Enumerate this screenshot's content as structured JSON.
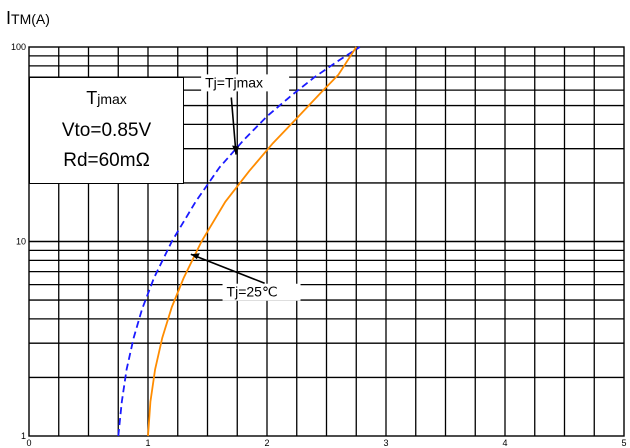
{
  "chart_data": {
    "type": "line",
    "ylabel_main": "I",
    "ylabel_sub": "TM(A)",
    "x_ticks": [
      "0",
      "1",
      "2",
      "3",
      "4",
      "5"
    ],
    "y_ticks": [
      "1",
      "10",
      "100"
    ],
    "xlim": [
      0,
      5
    ],
    "ylim": [
      1,
      100
    ],
    "y_scale": "log",
    "grid": true,
    "info": {
      "line1_main": "T",
      "line1_sub": "jmax",
      "line2": "Vto=0.85V",
      "line3": "Rd=60mΩ"
    },
    "series": [
      {
        "name": "Tj=Tjmax",
        "color": "#1a1aff",
        "dash": true,
        "points": [
          [
            0.75,
            1
          ],
          [
            0.78,
            1.5
          ],
          [
            0.82,
            2.2
          ],
          [
            0.88,
            3.2
          ],
          [
            0.95,
            4.5
          ],
          [
            1.05,
            6.5
          ],
          [
            1.2,
            10
          ],
          [
            1.4,
            16
          ],
          [
            1.6,
            24
          ],
          [
            1.8,
            33
          ],
          [
            2.0,
            44
          ],
          [
            2.2,
            56
          ],
          [
            2.4,
            70
          ],
          [
            2.6,
            85
          ],
          [
            2.78,
            100
          ]
        ]
      },
      {
        "name": "Tj=25℃",
        "color": "#ff8c00",
        "dash": false,
        "points": [
          [
            1.0,
            1
          ],
          [
            1.02,
            1.5
          ],
          [
            1.06,
            2.2
          ],
          [
            1.12,
            3.2
          ],
          [
            1.2,
            4.6
          ],
          [
            1.3,
            6.5
          ],
          [
            1.45,
            10
          ],
          [
            1.65,
            16
          ],
          [
            1.85,
            23
          ],
          [
            2.05,
            32
          ],
          [
            2.25,
            43
          ],
          [
            2.45,
            58
          ],
          [
            2.6,
            72
          ],
          [
            2.75,
            100
          ]
        ]
      }
    ],
    "annotations": [
      {
        "text": "Tj=Tjmax"
      },
      {
        "text": "Tj=25℃"
      }
    ]
  }
}
